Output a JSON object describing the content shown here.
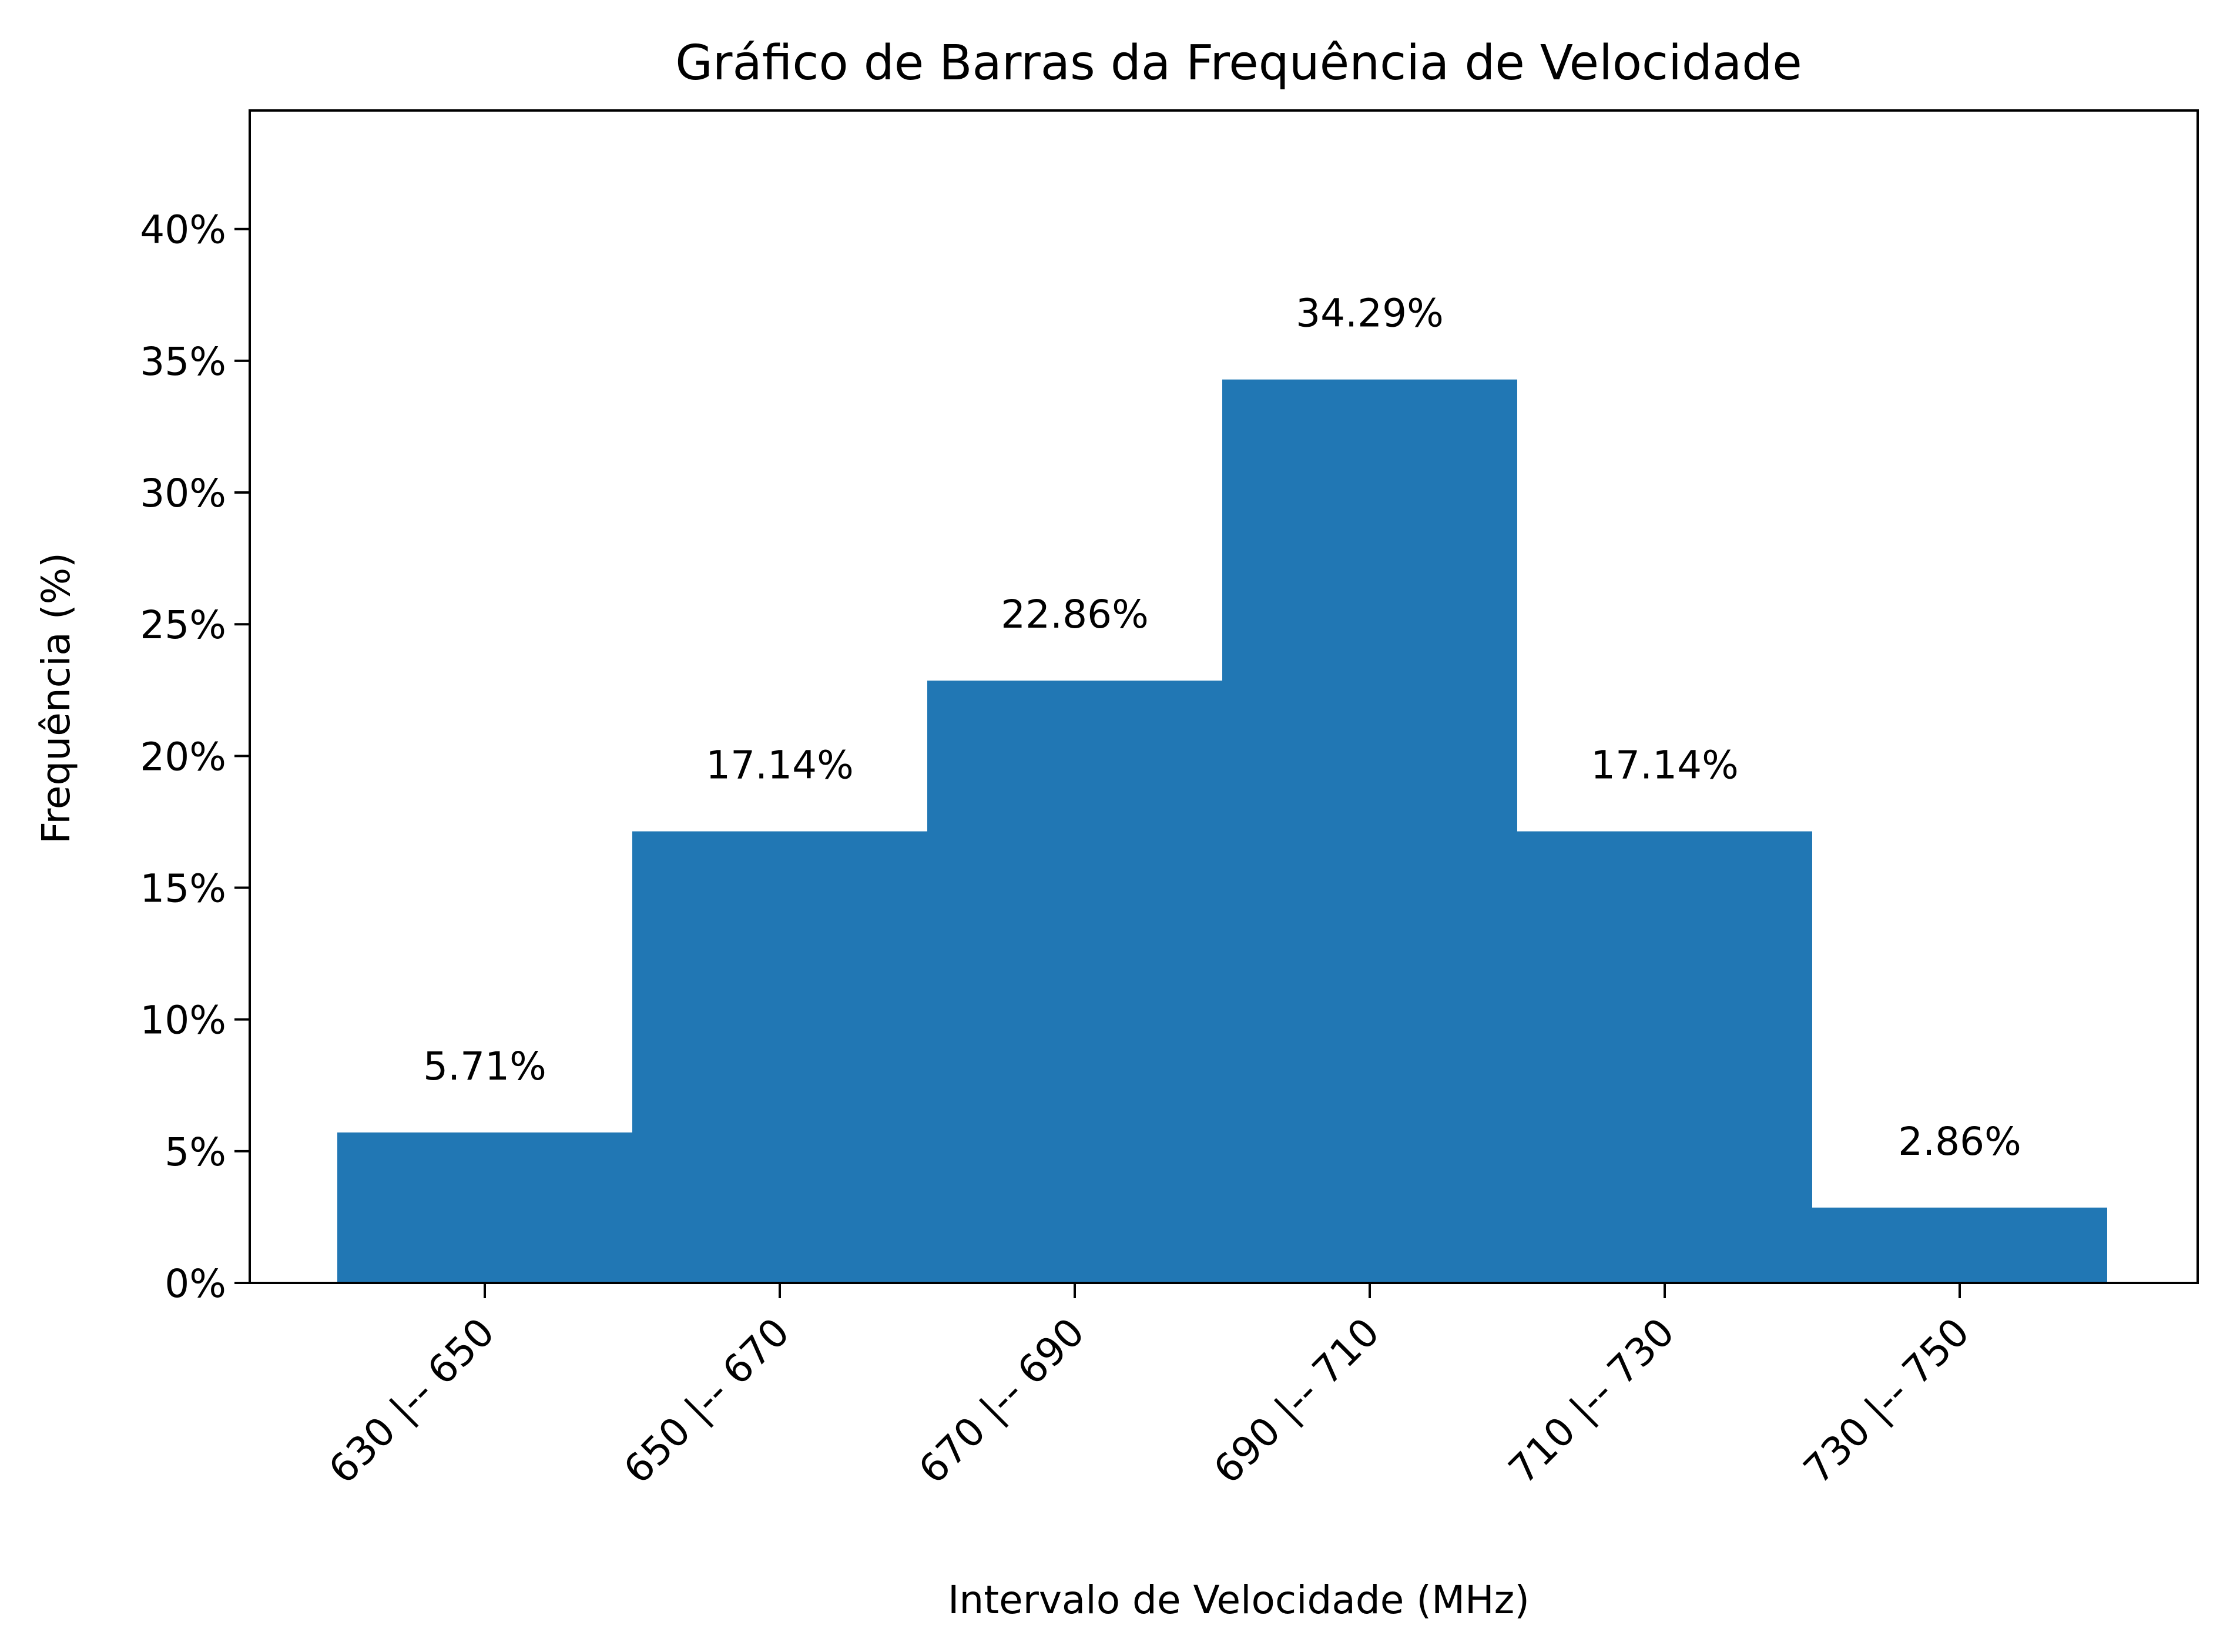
{
  "chart_data": {
    "type": "bar",
    "title": "Gráfico de Barras da Frequência de Velocidade",
    "xlabel": "Intervalo de Velocidade (MHz)",
    "ylabel": "Frequência (%)",
    "categories": [
      "630 |-- 650",
      "650 |-- 670",
      "670 |-- 690",
      "690 |-- 710",
      "710 |-- 730",
      "730 |-- 750"
    ],
    "values": [
      5.71,
      17.14,
      22.86,
      34.29,
      17.14,
      2.86
    ],
    "data_labels": [
      "5.71%",
      "17.14%",
      "22.86%",
      "34.29%",
      "17.14%",
      "2.86%"
    ],
    "ylim": [
      0,
      44.5
    ],
    "yticks": [
      0,
      5,
      10,
      15,
      20,
      25,
      30,
      35,
      40
    ],
    "ytick_labels": [
      "0%",
      "5%",
      "10%",
      "15%",
      "20%",
      "25%",
      "30%",
      "35%",
      "40%"
    ],
    "grid": false,
    "bar_color": "#2177b4"
  }
}
